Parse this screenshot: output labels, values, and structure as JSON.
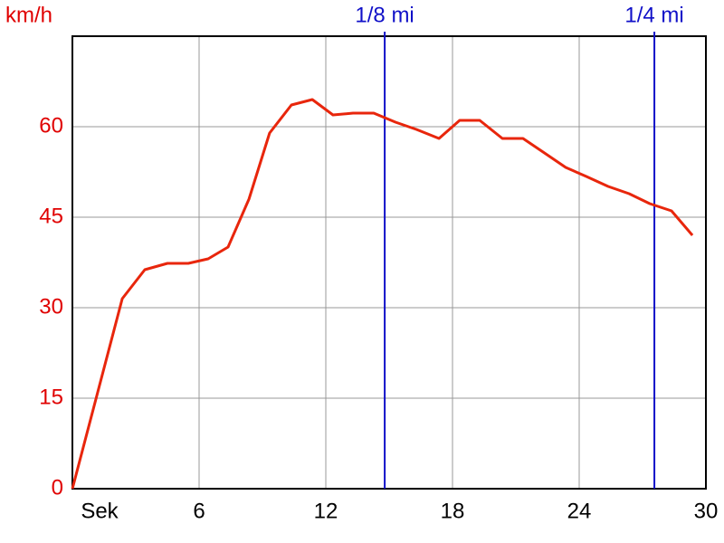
{
  "chart_data": {
    "type": "line",
    "y_label": "km/h",
    "x": [
      0,
      2.36,
      3.43,
      4.5,
      5.49,
      6.43,
      7.37,
      8.36,
      9.34,
      10.37,
      11.36,
      12.34,
      13.29,
      14.27,
      15.3,
      16.29,
      17.36,
      18.34,
      19.29,
      20.36,
      21.34,
      22.29,
      23.36,
      24.34,
      25.37,
      26.36,
      27.34,
      28.37,
      29.36
    ],
    "values": [
      0,
      31.5,
      36.3,
      37.35,
      37.35,
      38.1,
      40.05,
      48,
      58.95,
      63.6,
      64.5,
      61.95,
      62.25,
      62.25,
      60.75,
      59.55,
      58.05,
      61.05,
      61.05,
      58.05,
      58.05,
      55.8,
      53.25,
      51.75,
      50.1,
      48.9,
      47.25,
      46.05,
      42
    ],
    "color": "#e8260c",
    "xlim": [
      0,
      30
    ],
    "xticks": [
      {
        "value": 0,
        "label": "Sek"
      },
      6,
      12,
      18,
      24,
      30
    ],
    "ylim": [
      0,
      75
    ],
    "yticks": [
      0,
      15,
      30,
      45,
      60
    ],
    "grid": true,
    "markers": [
      {
        "value": 14.79,
        "label": "1/8 mi"
      },
      {
        "value": 27.56,
        "label": "1/4 mi"
      }
    ],
    "marker_color": "#1010c8",
    "y_tick_color": "#e00000"
  }
}
